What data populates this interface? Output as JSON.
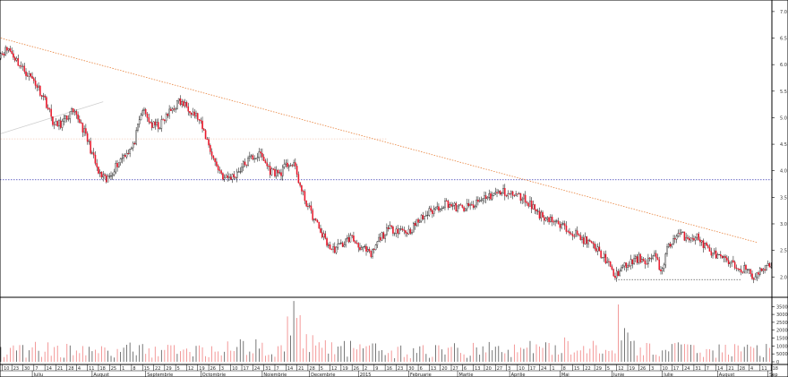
{
  "chart_data": [
    {
      "type": "candlestick",
      "panel": "price",
      "y_ticks": [
        "7.0",
        "6.5",
        "6.0",
        "5.5",
        "5.0",
        "4.5",
        "4.0",
        "3.5",
        "3.0",
        "2.5",
        "2.0"
      ],
      "y_tick_values": [
        7.0,
        6.5,
        6.0,
        5.5,
        5.0,
        4.5,
        4.0,
        3.5,
        3.0,
        2.5,
        2.0
      ],
      "ylim": [
        1.65,
        7.15
      ],
      "colors": {
        "up": "#ffffff",
        "down": "#e8192c",
        "outline": "#000000"
      },
      "anchors": [
        [
          0,
          6.2
        ],
        [
          6,
          6.3
        ],
        [
          14,
          5.95
        ],
        [
          22,
          5.7
        ],
        [
          29,
          5.35
        ],
        [
          35,
          4.85
        ],
        [
          40,
          4.9
        ],
        [
          46,
          5.1
        ],
        [
          51,
          4.95
        ],
        [
          57,
          4.5
        ],
        [
          63,
          3.95
        ],
        [
          68,
          3.8
        ],
        [
          73,
          4.05
        ],
        [
          79,
          4.3
        ],
        [
          85,
          4.45
        ],
        [
          91,
          5.15
        ],
        [
          97,
          4.85
        ],
        [
          102,
          4.85
        ],
        [
          108,
          5.1
        ],
        [
          114,
          5.3
        ],
        [
          120,
          5.2
        ],
        [
          126,
          5.0
        ],
        [
          131,
          4.65
        ],
        [
          137,
          4.15
        ],
        [
          143,
          3.85
        ],
        [
          149,
          3.9
        ],
        [
          155,
          4.1
        ],
        [
          160,
          4.25
        ],
        [
          166,
          4.3
        ],
        [
          172,
          4.0
        ],
        [
          178,
          3.95
        ],
        [
          184,
          4.15
        ],
        [
          188,
          4.05
        ],
        [
          192,
          3.6
        ],
        [
          198,
          3.2
        ],
        [
          205,
          2.8
        ],
        [
          211,
          2.5
        ],
        [
          217,
          2.6
        ],
        [
          223,
          2.75
        ],
        [
          230,
          2.55
        ],
        [
          236,
          2.4
        ],
        [
          242,
          2.75
        ],
        [
          248,
          2.9
        ],
        [
          254,
          2.9
        ],
        [
          260,
          2.85
        ],
        [
          266,
          3.05
        ],
        [
          272,
          3.2
        ],
        [
          278,
          3.3
        ],
        [
          284,
          3.4
        ],
        [
          290,
          3.3
        ],
        [
          296,
          3.3
        ],
        [
          302,
          3.35
        ],
        [
          308,
          3.5
        ],
        [
          314,
          3.55
        ],
        [
          320,
          3.6
        ],
        [
          326,
          3.55
        ],
        [
          332,
          3.5
        ],
        [
          338,
          3.35
        ],
        [
          344,
          3.15
        ],
        [
          350,
          3.1
        ],
        [
          356,
          2.95
        ],
        [
          362,
          2.9
        ],
        [
          368,
          2.75
        ],
        [
          374,
          2.65
        ],
        [
          380,
          2.5
        ],
        [
          386,
          2.3
        ],
        [
          390,
          2.0
        ],
        [
          395,
          2.15
        ],
        [
          400,
          2.25
        ],
        [
          406,
          2.35
        ],
        [
          411,
          2.3
        ],
        [
          416,
          2.4
        ],
        [
          420,
          2.1
        ],
        [
          425,
          2.6
        ],
        [
          431,
          2.8
        ],
        [
          437,
          2.75
        ],
        [
          443,
          2.75
        ],
        [
          449,
          2.55
        ],
        [
          455,
          2.4
        ],
        [
          461,
          2.3
        ],
        [
          467,
          2.2
        ],
        [
          473,
          2.15
        ],
        [
          479,
          2.0
        ],
        [
          485,
          2.15
        ],
        [
          490,
          2.2
        ]
      ],
      "reference_lines": [
        {
          "kind": "horizontal",
          "value": 3.83,
          "style": "dotted",
          "color": "#3b3bb3"
        },
        {
          "kind": "horizontal",
          "value": 4.6,
          "style": "dotted",
          "color": "#f2c9b8",
          "x_from": 0,
          "x_to": 245
        },
        {
          "kind": "horizontal",
          "value": 1.95,
          "style": "dotted",
          "color": "#555555",
          "x_from": 392,
          "x_to": 470
        }
      ],
      "trend_lines": [
        {
          "from": [
            0,
            6.5
          ],
          "to": [
            480,
            2.65
          ],
          "style": "dotted",
          "color": "#e8823c"
        },
        {
          "from": [
            0,
            4.7
          ],
          "to": [
            65,
            5.3
          ],
          "style": "solid",
          "color": "#cfcfcf"
        }
      ]
    },
    {
      "type": "bar",
      "panel": "volume",
      "y_ticks": [
        "0",
        "50000",
        "100000",
        "150000",
        "200000",
        "250000",
        "300000",
        "350000"
      ],
      "y_tick_values": [
        0,
        50000,
        100000,
        150000,
        200000,
        250000,
        300000,
        350000
      ],
      "ylim": [
        0,
        380000
      ],
      "colors": {
        "up": "#555555",
        "down": "#f08080"
      },
      "anchors": [
        [
          0,
          90000
        ],
        [
          30,
          110000
        ],
        [
          60,
          80000
        ],
        [
          90,
          100000
        ],
        [
          120,
          90000
        ],
        [
          150,
          110000
        ],
        [
          180,
          130000
        ],
        [
          184,
          360000
        ],
        [
          190,
          230000
        ],
        [
          200,
          150000
        ],
        [
          220,
          110000
        ],
        [
          250,
          80000
        ],
        [
          280,
          90000
        ],
        [
          320,
          100000
        ],
        [
          360,
          120000
        ],
        [
          390,
          150000
        ],
        [
          392,
          290000
        ],
        [
          400,
          110000
        ],
        [
          430,
          100000
        ],
        [
          460,
          90000
        ],
        [
          480,
          100000
        ],
        [
          490,
          90000
        ]
      ]
    }
  ],
  "x_axis": {
    "sessions": 490,
    "day_ticks": [
      {
        "i": 1,
        "label": "10"
      },
      {
        "i": 7,
        "label": "23"
      },
      {
        "i": 14,
        "label": "30"
      },
      {
        "i": 21,
        "label": "7"
      },
      {
        "i": 28,
        "label": "14"
      },
      {
        "i": 35,
        "label": "21"
      },
      {
        "i": 42,
        "label": "28"
      },
      {
        "i": 48,
        "label": "4"
      },
      {
        "i": 55,
        "label": "11"
      },
      {
        "i": 62,
        "label": "18"
      },
      {
        "i": 69,
        "label": "25"
      },
      {
        "i": 76,
        "label": "1"
      },
      {
        "i": 83,
        "label": "8"
      },
      {
        "i": 90,
        "label": "15"
      },
      {
        "i": 97,
        "label": "22"
      },
      {
        "i": 104,
        "label": "29"
      },
      {
        "i": 111,
        "label": "5"
      },
      {
        "i": 118,
        "label": "12"
      },
      {
        "i": 125,
        "label": "19"
      },
      {
        "i": 132,
        "label": "26"
      },
      {
        "i": 139,
        "label": "3"
      },
      {
        "i": 146,
        "label": "10"
      },
      {
        "i": 153,
        "label": "17"
      },
      {
        "i": 160,
        "label": "24"
      },
      {
        "i": 167,
        "label": "31"
      },
      {
        "i": 174,
        "label": "7"
      },
      {
        "i": 181,
        "label": "14"
      },
      {
        "i": 188,
        "label": "21"
      },
      {
        "i": 195,
        "label": "28"
      },
      {
        "i": 202,
        "label": "5"
      },
      {
        "i": 209,
        "label": "12"
      },
      {
        "i": 216,
        "label": "19"
      },
      {
        "i": 223,
        "label": "26"
      },
      {
        "i": 230,
        "label": "2"
      },
      {
        "i": 237,
        "label": "9"
      },
      {
        "i": 244,
        "label": "16"
      },
      {
        "i": 251,
        "label": "23"
      },
      {
        "i": 258,
        "label": "30"
      },
      {
        "i": 265,
        "label": "6"
      },
      {
        "i": 272,
        "label": "13"
      },
      {
        "i": 279,
        "label": "20"
      },
      {
        "i": 286,
        "label": "27"
      },
      {
        "i": 293,
        "label": "6"
      },
      {
        "i": 300,
        "label": "13"
      },
      {
        "i": 307,
        "label": "20"
      },
      {
        "i": 314,
        "label": "27"
      },
      {
        "i": 321,
        "label": "3"
      },
      {
        "i": 328,
        "label": "10"
      },
      {
        "i": 335,
        "label": "17"
      },
      {
        "i": 342,
        "label": "24"
      },
      {
        "i": 349,
        "label": "1"
      },
      {
        "i": 356,
        "label": "8"
      },
      {
        "i": 363,
        "label": "15"
      },
      {
        "i": 370,
        "label": "22"
      },
      {
        "i": 377,
        "label": "29"
      },
      {
        "i": 384,
        "label": "5"
      },
      {
        "i": 391,
        "label": "12"
      },
      {
        "i": 398,
        "label": "19"
      },
      {
        "i": 405,
        "label": "26"
      },
      {
        "i": 412,
        "label": "3"
      },
      {
        "i": 419,
        "label": "10"
      },
      {
        "i": 426,
        "label": "17"
      },
      {
        "i": 433,
        "label": "24"
      },
      {
        "i": 440,
        "label": "31"
      },
      {
        "i": 447,
        "label": "7"
      },
      {
        "i": 454,
        "label": "14"
      },
      {
        "i": 461,
        "label": "21"
      },
      {
        "i": 468,
        "label": "28"
      },
      {
        "i": 475,
        "label": "4"
      },
      {
        "i": 482,
        "label": "11"
      },
      {
        "i": 489,
        "label": "18"
      }
    ],
    "month_labels": [
      {
        "i": 20,
        "label": "Iuliu"
      },
      {
        "i": 58,
        "label": "August"
      },
      {
        "i": 92,
        "label": "Septembrie"
      },
      {
        "i": 127,
        "label": "Octombrie"
      },
      {
        "i": 166,
        "label": "Noiembrie"
      },
      {
        "i": 196,
        "label": "Decembrie"
      },
      {
        "i": 227,
        "label": "2015"
      },
      {
        "i": 259,
        "label": "Februarie"
      },
      {
        "i": 290,
        "label": "Martie"
      },
      {
        "i": 323,
        "label": "Aprilie"
      },
      {
        "i": 355,
        "label": "Mai"
      },
      {
        "i": 388,
        "label": "Iunie"
      },
      {
        "i": 420,
        "label": "Iulie"
      },
      {
        "i": 455,
        "label": "August"
      },
      {
        "i": 487,
        "label": "Sep"
      }
    ]
  }
}
